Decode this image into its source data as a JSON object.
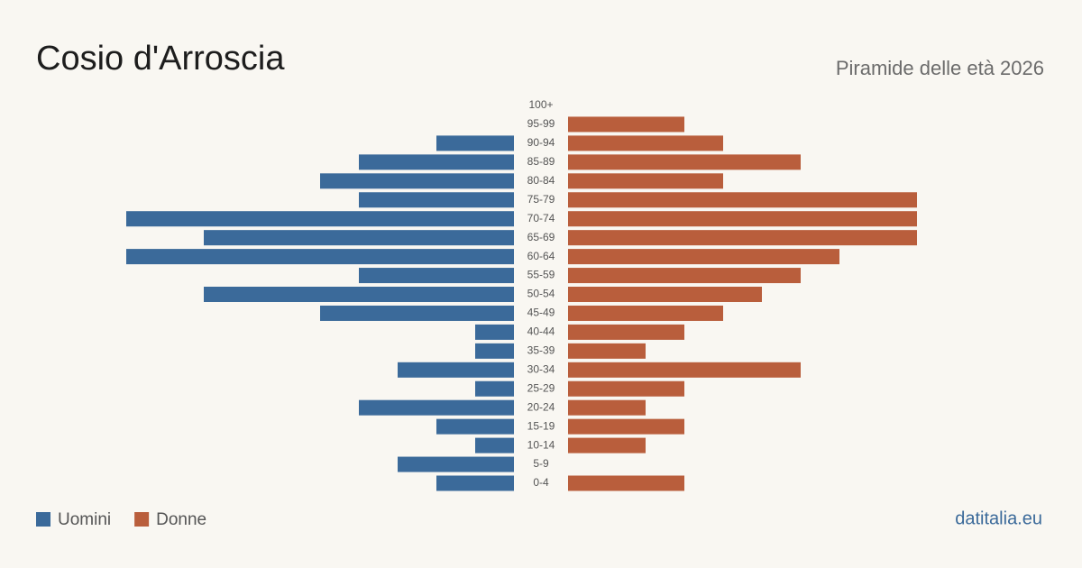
{
  "chart_data": {
    "type": "pyramid",
    "title": "Cosio d'Arroscia",
    "subtitle": "Piramide delle età 2026",
    "source": "datitalia.eu",
    "categories": [
      "100+",
      "95-99",
      "90-94",
      "85-89",
      "80-84",
      "75-79",
      "70-74",
      "65-69",
      "60-64",
      "55-59",
      "50-54",
      "45-49",
      "40-44",
      "35-39",
      "30-34",
      "25-29",
      "20-24",
      "15-19",
      "10-14",
      "5-9",
      "0-4"
    ],
    "series": [
      {
        "name": "Uomini",
        "color": "#3b6a9a",
        "values": [
          0,
          0,
          2,
          4,
          5,
          4,
          10,
          8,
          10,
          4,
          8,
          5,
          1,
          1,
          3,
          1,
          4,
          2,
          1,
          3,
          2
        ]
      },
      {
        "name": "Donne",
        "color": "#b95e3c",
        "values": [
          0,
          3,
          4,
          6,
          4,
          9,
          9,
          9,
          7,
          6,
          5,
          4,
          3,
          2,
          6,
          3,
          2,
          3,
          2,
          0,
          3
        ]
      }
    ]
  }
}
